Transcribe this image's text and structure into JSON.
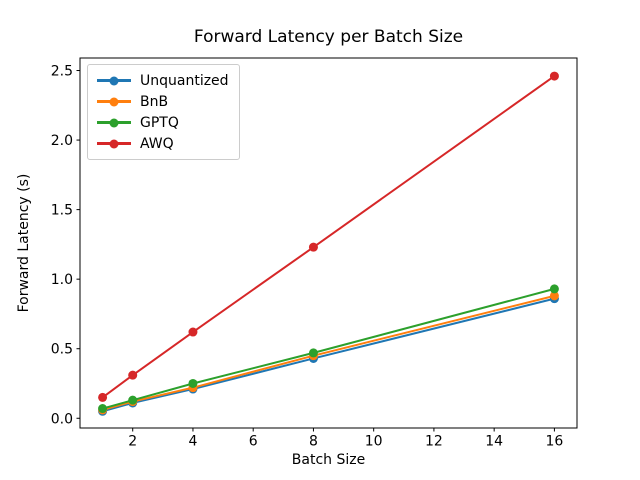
{
  "chart_data": {
    "type": "line",
    "title": "Forward Latency per Batch Size",
    "xlabel": "Batch Size",
    "ylabel": "Forward Latency (s)",
    "x": [
      1,
      2,
      4,
      8,
      16
    ],
    "series": [
      {
        "name": "Unquantized",
        "color": "#1f77b4",
        "marker": "o",
        "values": [
          0.05,
          0.11,
          0.21,
          0.43,
          0.86
        ]
      },
      {
        "name": "BnB",
        "color": "#ff7f0e",
        "marker": "o",
        "values": [
          0.06,
          0.12,
          0.22,
          0.45,
          0.88
        ]
      },
      {
        "name": "GPTQ",
        "color": "#2ca02c",
        "marker": "o",
        "values": [
          0.07,
          0.13,
          0.25,
          0.47,
          0.93
        ]
      },
      {
        "name": "AWQ",
        "color": "#d62728",
        "marker": "o",
        "values": [
          0.15,
          0.31,
          0.62,
          1.23,
          2.46
        ]
      }
    ],
    "xticks": [
      {
        "value": 2,
        "label": "2"
      },
      {
        "value": 4,
        "label": "4"
      },
      {
        "value": 6,
        "label": "6"
      },
      {
        "value": 8,
        "label": "8"
      },
      {
        "value": 10,
        "label": "10"
      },
      {
        "value": 12,
        "label": "12"
      },
      {
        "value": 14,
        "label": "14"
      },
      {
        "value": 16,
        "label": "16"
      }
    ],
    "yticks": [
      {
        "value": 0.0,
        "label": "0.0"
      },
      {
        "value": 0.5,
        "label": "0.5"
      },
      {
        "value": 1.0,
        "label": "1.0"
      },
      {
        "value": 1.5,
        "label": "1.5"
      },
      {
        "value": 2.0,
        "label": "2.0"
      },
      {
        "value": 2.5,
        "label": "2.5"
      }
    ],
    "xlim": [
      0.25,
      16.75
    ],
    "ylim": [
      -0.07,
      2.59
    ],
    "legend_position": "upper left",
    "grid": false,
    "background": "#ffffff",
    "axis_color": "#000000",
    "text_color": "#000000"
  }
}
